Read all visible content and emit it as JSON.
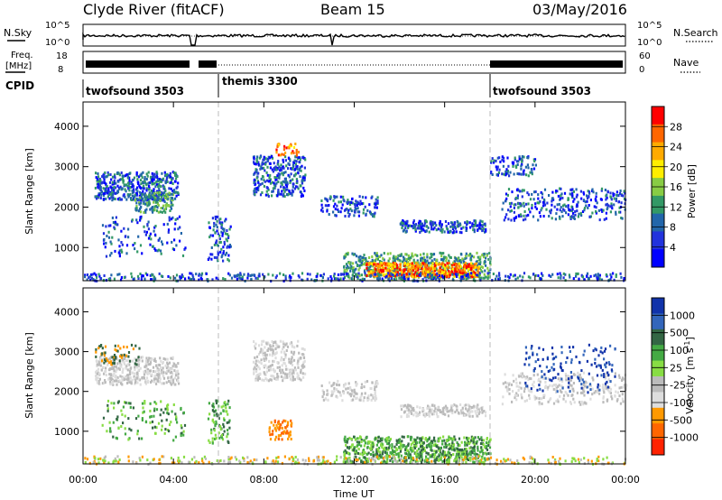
{
  "header": {
    "station": "Clyde River (fitACF)",
    "beam": "Beam 15",
    "date": "03/May/2016"
  },
  "noise_panel": {
    "left_label": "N.Sky",
    "right_label": "N.Search",
    "left_ticks": [
      "10^5",
      "10^0"
    ],
    "right_ticks": [
      "10^5",
      "10^0"
    ]
  },
  "freq_panel": {
    "left_label_1": "Freq.",
    "left_label_2": "[MHz]",
    "right_label": "Nave",
    "left_ticks": [
      "18",
      "8"
    ],
    "right_ticks": [
      "60",
      "0"
    ]
  },
  "cpid": {
    "label": "CPID",
    "segments": [
      {
        "name": "twofsound 3503",
        "start_hour": 0.0
      },
      {
        "name": "themis 3300",
        "start_hour": 6.0
      },
      {
        "name": "twofsound 3503",
        "start_hour": 18.0
      }
    ]
  },
  "chart_data": [
    {
      "type": "heatmap",
      "name": "power",
      "ylabel": "Slant Range [km]",
      "yticks": [
        "4000",
        "3000",
        "2000",
        "1000"
      ],
      "ylim": [
        180,
        4600
      ],
      "xlim": [
        0,
        24
      ],
      "colorbar": {
        "label": "Power [dB]",
        "ticks": [
          "28",
          "24",
          "20",
          "16",
          "12",
          "8",
          "4"
        ],
        "colors": [
          "#ff0000",
          "#ff6600",
          "#ffaa00",
          "#ffee00",
          "#88cc44",
          "#339966",
          "#2266aa",
          "#2233dd",
          "#0000ff"
        ]
      }
    },
    {
      "type": "heatmap",
      "name": "velocity",
      "ylabel": "Slant Range [km]",
      "yticks": [
        "4000",
        "3000",
        "2000",
        "1000"
      ],
      "ylim": [
        180,
        4600
      ],
      "xlim": [
        0,
        24
      ],
      "colorbar": {
        "label": "Velocity",
        "units": "[m s",
        "units_sup": "-1",
        "units_end": "]",
        "ticks": [
          "1000",
          "500",
          "100",
          "25",
          "-25",
          "-100",
          "-500",
          "-1000"
        ],
        "colors": [
          "#1133aa",
          "#3366bb",
          "#336644",
          "#44aa44",
          "#88dd44",
          "#bbbbbb",
          "#dddddd",
          "#ff9900",
          "#ff6600",
          "#ff2200"
        ]
      }
    }
  ],
  "xaxis": {
    "label": "Time UT",
    "ticks": [
      "00:00",
      "04:00",
      "08:00",
      "12:00",
      "16:00",
      "20:00",
      "00:00"
    ],
    "tick_hours": [
      0,
      4,
      8,
      12,
      16,
      20,
      24
    ]
  }
}
